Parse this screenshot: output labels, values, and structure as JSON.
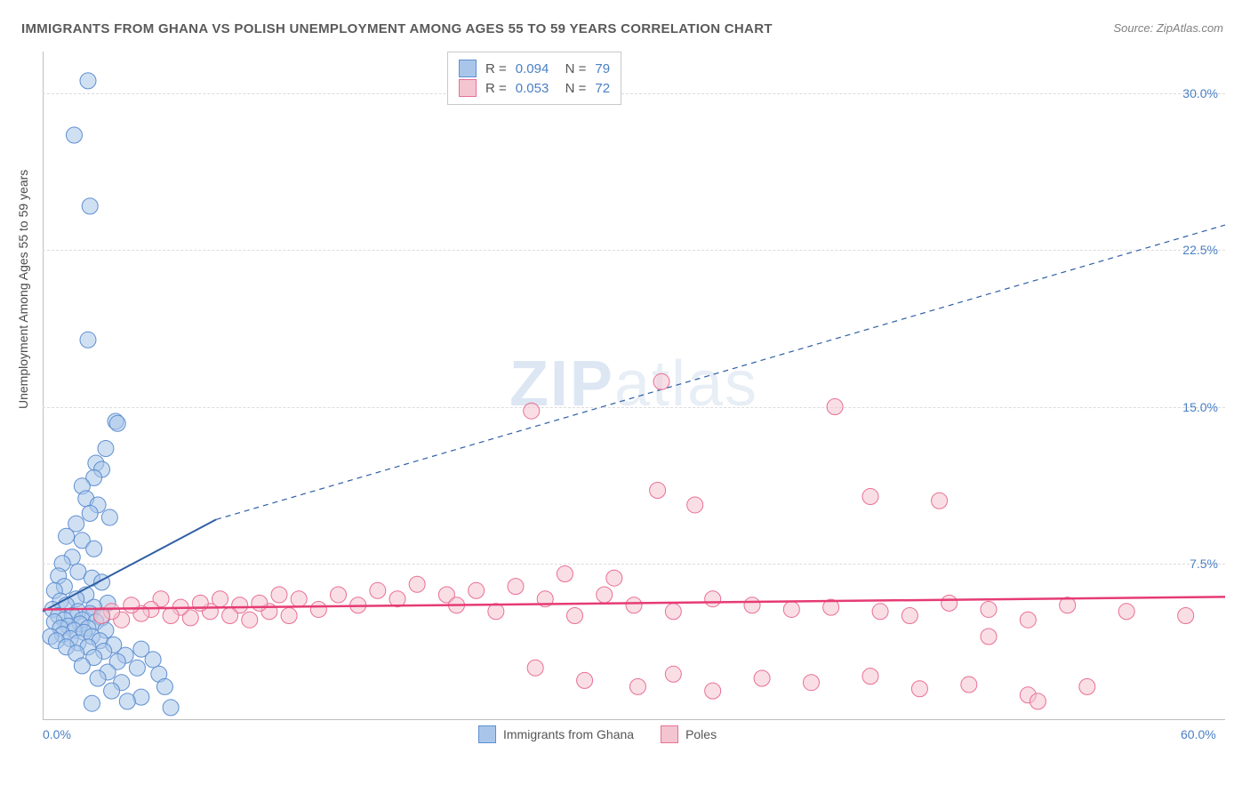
{
  "title": "IMMIGRANTS FROM GHANA VS POLISH UNEMPLOYMENT AMONG AGES 55 TO 59 YEARS CORRELATION CHART",
  "source": "Source: ZipAtlas.com",
  "ylabel": "Unemployment Among Ages 55 to 59 years",
  "watermark": {
    "bold": "ZIP",
    "light": "atlas"
  },
  "chart": {
    "type": "scatter",
    "xlim": [
      0,
      60
    ],
    "ylim": [
      0,
      32
    ],
    "xticks": [
      {
        "value": 0,
        "label": "0.0%"
      },
      {
        "value": 60,
        "label": "60.0%"
      }
    ],
    "yticks": [
      {
        "value": 7.5,
        "label": "7.5%"
      },
      {
        "value": 15.0,
        "label": "15.0%"
      },
      {
        "value": 22.5,
        "label": "22.5%"
      },
      {
        "value": 30.0,
        "label": "30.0%"
      }
    ],
    "grid_color": "#dcdcdc",
    "axis_color": "#bfbfbf",
    "background_color": "#ffffff",
    "marker_radius": 9,
    "marker_opacity": 0.55,
    "series": [
      {
        "name": "Immigrants from Ghana",
        "color_fill": "#a9c6ea",
        "color_stroke": "#5e8fd1",
        "R": "0.094",
        "N": "79",
        "trend": {
          "solid": {
            "x1": 0,
            "y1": 5.2,
            "x2": 8.8,
            "y2": 9.6
          },
          "dashed": {
            "x1": 8.8,
            "y1": 9.6,
            "x2": 60,
            "y2": 23.7
          },
          "stroke": "#2f5fa5",
          "width": 2
        },
        "points": [
          [
            2.3,
            30.6
          ],
          [
            1.6,
            28.0
          ],
          [
            2.4,
            24.6
          ],
          [
            2.3,
            18.2
          ],
          [
            3.7,
            14.3
          ],
          [
            3.8,
            14.2
          ],
          [
            3.2,
            13.0
          ],
          [
            2.7,
            12.3
          ],
          [
            3.0,
            12.0
          ],
          [
            2.6,
            11.6
          ],
          [
            2.0,
            11.2
          ],
          [
            2.2,
            10.6
          ],
          [
            2.8,
            10.3
          ],
          [
            2.4,
            9.9
          ],
          [
            3.4,
            9.7
          ],
          [
            1.7,
            9.4
          ],
          [
            1.2,
            8.8
          ],
          [
            2.0,
            8.6
          ],
          [
            2.6,
            8.2
          ],
          [
            1.5,
            7.8
          ],
          [
            1.0,
            7.5
          ],
          [
            1.8,
            7.1
          ],
          [
            0.8,
            6.9
          ],
          [
            2.5,
            6.8
          ],
          [
            3.0,
            6.6
          ],
          [
            1.1,
            6.4
          ],
          [
            0.6,
            6.2
          ],
          [
            2.2,
            6.0
          ],
          [
            1.7,
            5.8
          ],
          [
            0.9,
            5.7
          ],
          [
            3.3,
            5.6
          ],
          [
            1.2,
            5.5
          ],
          [
            2.6,
            5.4
          ],
          [
            0.5,
            5.3
          ],
          [
            1.8,
            5.2
          ],
          [
            2.4,
            5.1
          ],
          [
            0.8,
            5.0
          ],
          [
            1.5,
            5.0
          ],
          [
            3.0,
            4.9
          ],
          [
            2.0,
            4.8
          ],
          [
            1.1,
            4.8
          ],
          [
            0.6,
            4.7
          ],
          [
            2.7,
            4.7
          ],
          [
            1.9,
            4.6
          ],
          [
            1.3,
            4.5
          ],
          [
            0.9,
            4.4
          ],
          [
            2.3,
            4.4
          ],
          [
            1.6,
            4.3
          ],
          [
            3.2,
            4.3
          ],
          [
            2.1,
            4.2
          ],
          [
            1.0,
            4.1
          ],
          [
            0.4,
            4.0
          ],
          [
            2.5,
            4.0
          ],
          [
            1.4,
            3.9
          ],
          [
            0.7,
            3.8
          ],
          [
            2.9,
            3.8
          ],
          [
            1.8,
            3.7
          ],
          [
            3.6,
            3.6
          ],
          [
            1.2,
            3.5
          ],
          [
            2.3,
            3.5
          ],
          [
            5.0,
            3.4
          ],
          [
            3.1,
            3.3
          ],
          [
            1.7,
            3.2
          ],
          [
            4.2,
            3.1
          ],
          [
            2.6,
            3.0
          ],
          [
            5.6,
            2.9
          ],
          [
            3.8,
            2.8
          ],
          [
            2.0,
            2.6
          ],
          [
            4.8,
            2.5
          ],
          [
            3.3,
            2.3
          ],
          [
            5.9,
            2.2
          ],
          [
            2.8,
            2.0
          ],
          [
            4.0,
            1.8
          ],
          [
            6.2,
            1.6
          ],
          [
            3.5,
            1.4
          ],
          [
            5.0,
            1.1
          ],
          [
            4.3,
            0.9
          ],
          [
            2.5,
            0.8
          ],
          [
            6.5,
            0.6
          ]
        ]
      },
      {
        "name": "Poles",
        "color_fill": "#f4c5d0",
        "color_stroke": "#e96f95",
        "R": "0.053",
        "N": "72",
        "trend": {
          "solid": {
            "x1": 0,
            "y1": 5.3,
            "x2": 60,
            "y2": 5.9
          },
          "dashed": null,
          "stroke": "#e63b74",
          "width": 2.5
        },
        "points": [
          [
            24.8,
            14.8
          ],
          [
            31.4,
            16.2
          ],
          [
            40.2,
            15.0
          ],
          [
            31.2,
            11.0
          ],
          [
            33.1,
            10.3
          ],
          [
            42.0,
            10.7
          ],
          [
            45.5,
            10.5
          ],
          [
            29.0,
            6.8
          ],
          [
            26.5,
            7.0
          ],
          [
            24.0,
            6.4
          ],
          [
            22.0,
            6.2
          ],
          [
            20.5,
            6.0
          ],
          [
            19.0,
            6.5
          ],
          [
            18.0,
            5.8
          ],
          [
            17.0,
            6.2
          ],
          [
            16.0,
            5.5
          ],
          [
            15.0,
            6.0
          ],
          [
            14.0,
            5.3
          ],
          [
            13.0,
            5.8
          ],
          [
            12.5,
            5.0
          ],
          [
            12.0,
            6.0
          ],
          [
            11.5,
            5.2
          ],
          [
            11.0,
            5.6
          ],
          [
            10.5,
            4.8
          ],
          [
            10.0,
            5.5
          ],
          [
            9.5,
            5.0
          ],
          [
            9.0,
            5.8
          ],
          [
            8.5,
            5.2
          ],
          [
            8.0,
            5.6
          ],
          [
            7.5,
            4.9
          ],
          [
            7.0,
            5.4
          ],
          [
            6.5,
            5.0
          ],
          [
            6.0,
            5.8
          ],
          [
            5.5,
            5.3
          ],
          [
            5.0,
            5.1
          ],
          [
            4.5,
            5.5
          ],
          [
            4.0,
            4.8
          ],
          [
            3.5,
            5.2
          ],
          [
            3.0,
            5.0
          ],
          [
            21.0,
            5.5
          ],
          [
            23.0,
            5.2
          ],
          [
            25.5,
            5.8
          ],
          [
            27.0,
            5.0
          ],
          [
            28.5,
            6.0
          ],
          [
            30.0,
            5.5
          ],
          [
            32.0,
            5.2
          ],
          [
            34.0,
            5.8
          ],
          [
            36.0,
            5.5
          ],
          [
            38.0,
            5.3
          ],
          [
            40.0,
            5.4
          ],
          [
            42.5,
            5.2
          ],
          [
            44.0,
            5.0
          ],
          [
            46.0,
            5.6
          ],
          [
            48.0,
            5.3
          ],
          [
            50.0,
            4.8
          ],
          [
            52.0,
            5.5
          ],
          [
            55.0,
            5.2
          ],
          [
            58.0,
            5.0
          ],
          [
            25.0,
            2.5
          ],
          [
            27.5,
            1.9
          ],
          [
            30.2,
            1.6
          ],
          [
            32.0,
            2.2
          ],
          [
            34.0,
            1.4
          ],
          [
            36.5,
            2.0
          ],
          [
            39.0,
            1.8
          ],
          [
            42.0,
            2.1
          ],
          [
            44.5,
            1.5
          ],
          [
            47.0,
            1.7
          ],
          [
            50.0,
            1.2
          ],
          [
            53.0,
            1.6
          ],
          [
            48.0,
            4.0
          ],
          [
            50.5,
            0.9
          ]
        ]
      }
    ],
    "legend_bottom": [
      {
        "label": "Immigrants from Ghana",
        "fill": "#a9c6ea",
        "stroke": "#5e8fd1"
      },
      {
        "label": "Poles",
        "fill": "#f4c5d0",
        "stroke": "#e96f95"
      }
    ]
  }
}
